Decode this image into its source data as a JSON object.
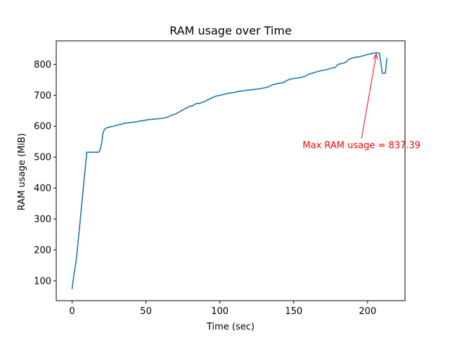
{
  "chart_data": {
    "type": "line",
    "title": "RAM usage over Time",
    "xlabel": "Time (sec)",
    "ylabel": "RAM usage (MiB)",
    "xlim": [
      -10.7,
      225.3
    ],
    "ylim": [
      36,
      876
    ],
    "xticks": [
      0,
      50,
      100,
      150,
      200
    ],
    "yticks": [
      100,
      200,
      300,
      400,
      500,
      600,
      700,
      800
    ],
    "grid": false,
    "series": [
      {
        "color": "#1f77b4",
        "x": [
          0,
          1,
          3,
          5,
          8,
          10,
          12,
          14,
          16,
          18,
          19,
          20,
          21,
          22,
          23,
          25,
          28,
          30,
          33,
          35,
          38,
          40,
          43,
          45,
          48,
          50,
          53,
          55,
          58,
          60,
          63,
          65,
          68,
          70,
          72,
          73,
          75,
          78,
          80,
          81,
          83,
          85,
          86,
          88,
          90,
          91,
          93,
          95,
          97,
          99,
          100,
          103,
          105,
          108,
          110,
          112,
          115,
          118,
          120,
          125,
          128,
          130,
          133,
          135,
          138,
          140,
          143,
          145,
          148,
          150,
          152,
          155,
          158,
          160,
          163,
          165,
          168,
          170,
          173,
          175,
          178,
          180,
          182,
          185,
          187,
          190,
          192,
          195,
          197,
          200,
          202,
          204,
          206,
          208,
          210,
          212,
          213
        ],
        "values": [
          75,
          110,
          175,
          270,
          420,
          516,
          516,
          516,
          516,
          516,
          525,
          545,
          580,
          590,
          594,
          597,
          600,
          603,
          606,
          609,
          611,
          612,
          614,
          616,
          618,
          620,
          622,
          623,
          624,
          625,
          627,
          630,
          637,
          639,
          645,
          647,
          653,
          660,
          666,
          664,
          671,
          674,
          673,
          677,
          680,
          684,
          688,
          692,
          697,
          699,
          700,
          703,
          706,
          708,
          709,
          712,
          714,
          716,
          717,
          720,
          722,
          724,
          727,
          733,
          737,
          739,
          741,
          747,
          753,
          754,
          755,
          758,
          762,
          768,
          772,
          775,
          779,
          781,
          784,
          787,
          790,
          800,
          802,
          806,
          815,
          821,
          823,
          825,
          828,
          832,
          834,
          836,
          837.39,
          836,
          771,
          771,
          818
        ]
      }
    ],
    "annotations": [
      {
        "text": "Max RAM usage = 837.39",
        "color": "#ff0000",
        "point": [
          206,
          837.39
        ],
        "text_at": [
          156,
          540
        ]
      }
    ]
  }
}
